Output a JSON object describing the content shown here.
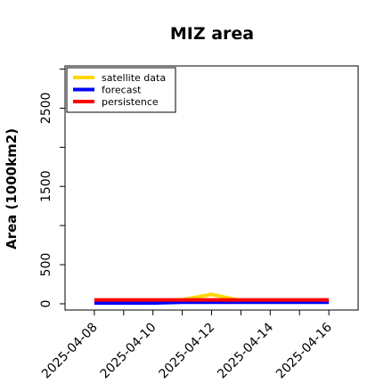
{
  "chart_data": {
    "type": "line",
    "title": "MIZ area",
    "ylabel": "Area (1000km2)",
    "xlabel": "",
    "ylim": [
      -80,
      3040
    ],
    "xlim": [
      "2025-04-07",
      "2025-04-17"
    ],
    "y_ticks": [
      0,
      500,
      1500,
      2500
    ],
    "x_ticks": [
      "2025-04-08",
      "2025-04-10",
      "2025-04-12",
      "2025-04-14",
      "2025-04-16"
    ],
    "highlighted_tick": "2025-04-08",
    "highlight_color": "#228b22",
    "legend_position": "top-left",
    "x": [
      "2025-04-07",
      "2025-04-08",
      "2025-04-09",
      "2025-04-10",
      "2025-04-11",
      "2025-04-12",
      "2025-04-13",
      "2025-04-14",
      "2025-04-15",
      "2025-04-16",
      "2025-04-17"
    ],
    "series": [
      {
        "name": "satellite data",
        "color": "#ffd700",
        "values": [
          null,
          20,
          20,
          30,
          50,
          120,
          40,
          40,
          40,
          40,
          null
        ]
      },
      {
        "name": "forecast",
        "color": "#0000ff",
        "values": [
          null,
          10,
          10,
          10,
          20,
          20,
          20,
          20,
          20,
          20,
          null
        ]
      },
      {
        "name": "persistence",
        "color": "#ff0000",
        "values": [
          null,
          50,
          50,
          50,
          50,
          50,
          50,
          50,
          50,
          50,
          null
        ]
      }
    ]
  }
}
